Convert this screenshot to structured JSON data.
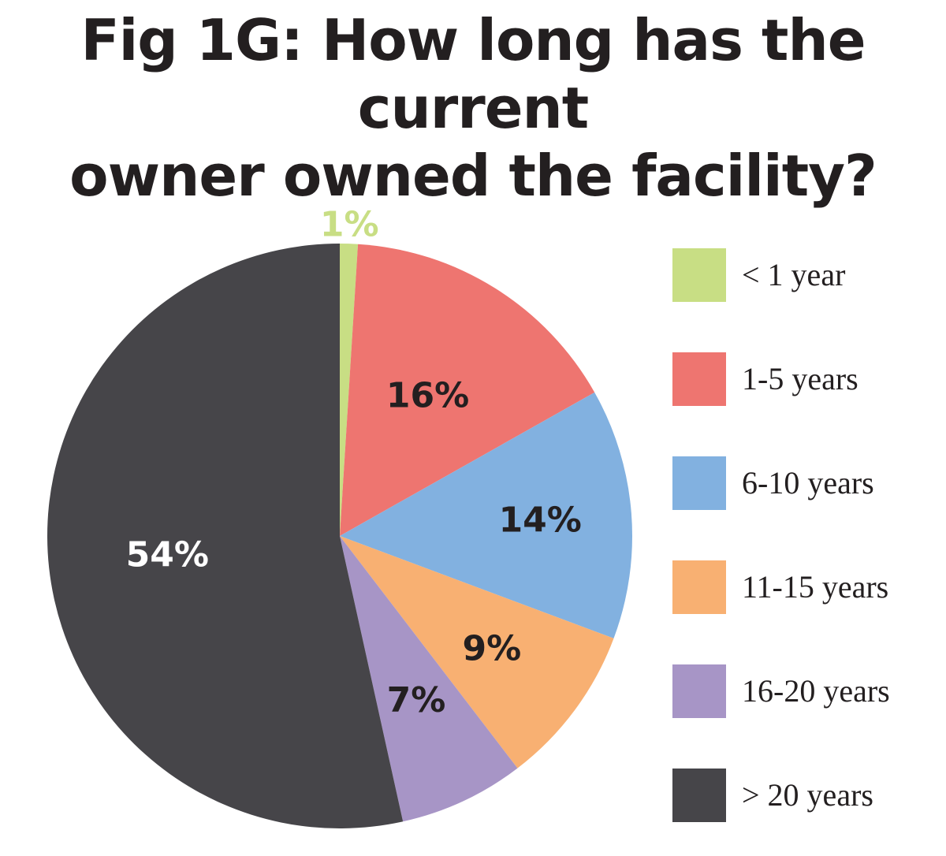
{
  "title_line1": "Fig 1G: How long has the current",
  "title_line2": "owner owned the facility?",
  "chart_data": {
    "type": "pie",
    "title": "Fig 1G: How long has the current owner owned the facility?",
    "categories": [
      "< 1 year",
      "1-5 years",
      "6-10 years",
      "11-15 years",
      "16-20 years",
      "> 20 years"
    ],
    "values": [
      1,
      16,
      14,
      9,
      7,
      54
    ],
    "labels": [
      "1%",
      "16%",
      "14%",
      "9%",
      "7%",
      "54%"
    ],
    "colors": [
      "#c8de84",
      "#ee7570",
      "#82b1e0",
      "#f8b072",
      "#a795c6",
      "#464549"
    ],
    "label_colors": [
      "#c8de84",
      "#231f20",
      "#231f20",
      "#231f20",
      "#231f20",
      "#ffffff"
    ],
    "legend_position": "right",
    "start_angle_deg": 0,
    "direction": "clockwise"
  }
}
